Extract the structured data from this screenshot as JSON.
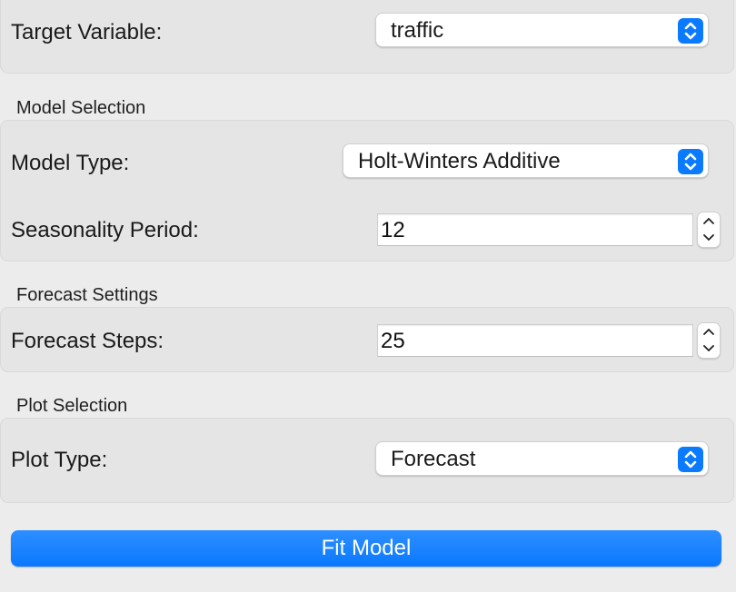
{
  "target": {
    "label": "Target Variable:",
    "value": "traffic",
    "icon": "chevron-up-down-icon"
  },
  "model_selection": {
    "title": "Model Selection",
    "model_type_label": "Model Type:",
    "model_type_value": "Holt-Winters Additive",
    "seasonality_label": "Seasonality Period:",
    "seasonality_value": "12"
  },
  "forecast_settings": {
    "title": "Forecast Settings",
    "steps_label": "Forecast Steps:",
    "steps_value": "25"
  },
  "plot_selection": {
    "title": "Plot Selection",
    "plot_type_label": "Plot Type:",
    "plot_type_value": "Forecast"
  },
  "actions": {
    "fit_label": "Fit Model"
  },
  "colors": {
    "accent": "#0a7bff",
    "panel": "#e5e5e5",
    "window": "#ececec"
  }
}
